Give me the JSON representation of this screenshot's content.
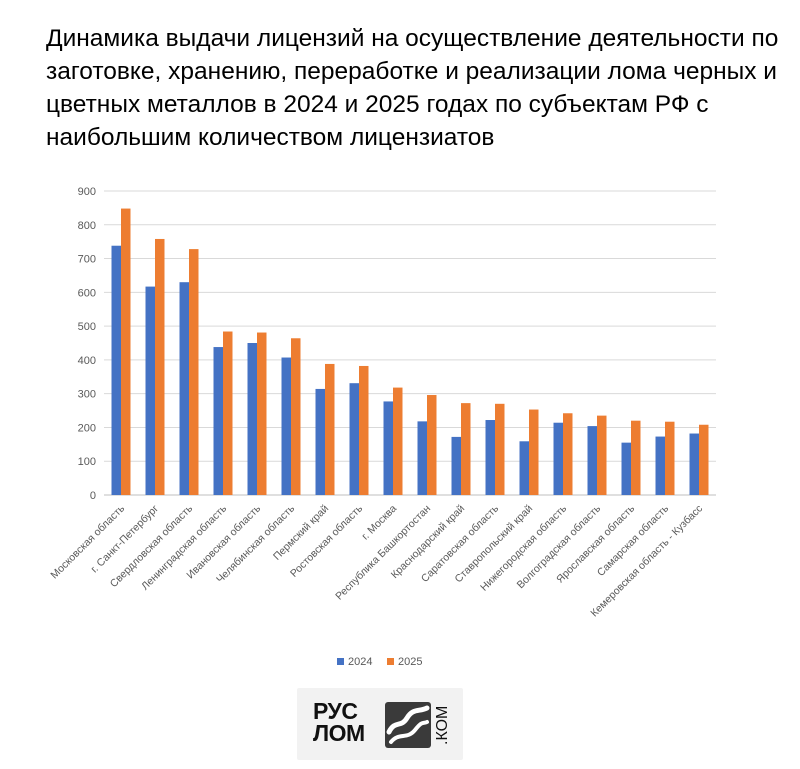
{
  "title": "Динамика выдачи лицензий на осуществление деятельности по заготовке, хранению, переработке и реализации лома черных и цветных металлов в 2024 и 2025 годах по субъектам РФ с наибольшим количеством лицензиатов",
  "chart_data": {
    "type": "bar",
    "title": "",
    "xlabel": "",
    "ylabel": "",
    "ylim": [
      0,
      900
    ],
    "yticks": [
      0,
      100,
      200,
      300,
      400,
      500,
      600,
      700,
      800,
      900
    ],
    "grid": true,
    "legend_position": "bottom",
    "categories": [
      "Московская область",
      "г. Санкт-Петербург",
      "Свердловская область",
      "Ленинградская область",
      "Ивановская область",
      "Челябинская область",
      "Пермский край",
      "Ростовская область",
      "г. Москва",
      "Республика Башкортостан",
      "Краснодарский край",
      "Саратовская область",
      "Ставропольский край",
      "Нижегородская область",
      "Волгоградская область",
      "Ярославская область",
      "Самарская область",
      "Кемеровская область - Кузбасс"
    ],
    "series": [
      {
        "name": "2024",
        "color": "#4472C4",
        "values": [
          738,
          617,
          630,
          438,
          450,
          407,
          314,
          331,
          277,
          218,
          172,
          222,
          159,
          214,
          204,
          155,
          173,
          182
        ]
      },
      {
        "name": "2025",
        "color": "#ED7D31",
        "values": [
          848,
          758,
          728,
          484,
          481,
          464,
          388,
          382,
          318,
          296,
          272,
          270,
          253,
          242,
          235,
          220,
          217,
          208
        ]
      }
    ]
  },
  "logo": {
    "line1": "РУС",
    "line2": "ЛОМ",
    "suffix": ".КОМ",
    "colors": {
      "mark_bg": "#3a3a3a",
      "mark_fg": "#ffffff"
    }
  }
}
